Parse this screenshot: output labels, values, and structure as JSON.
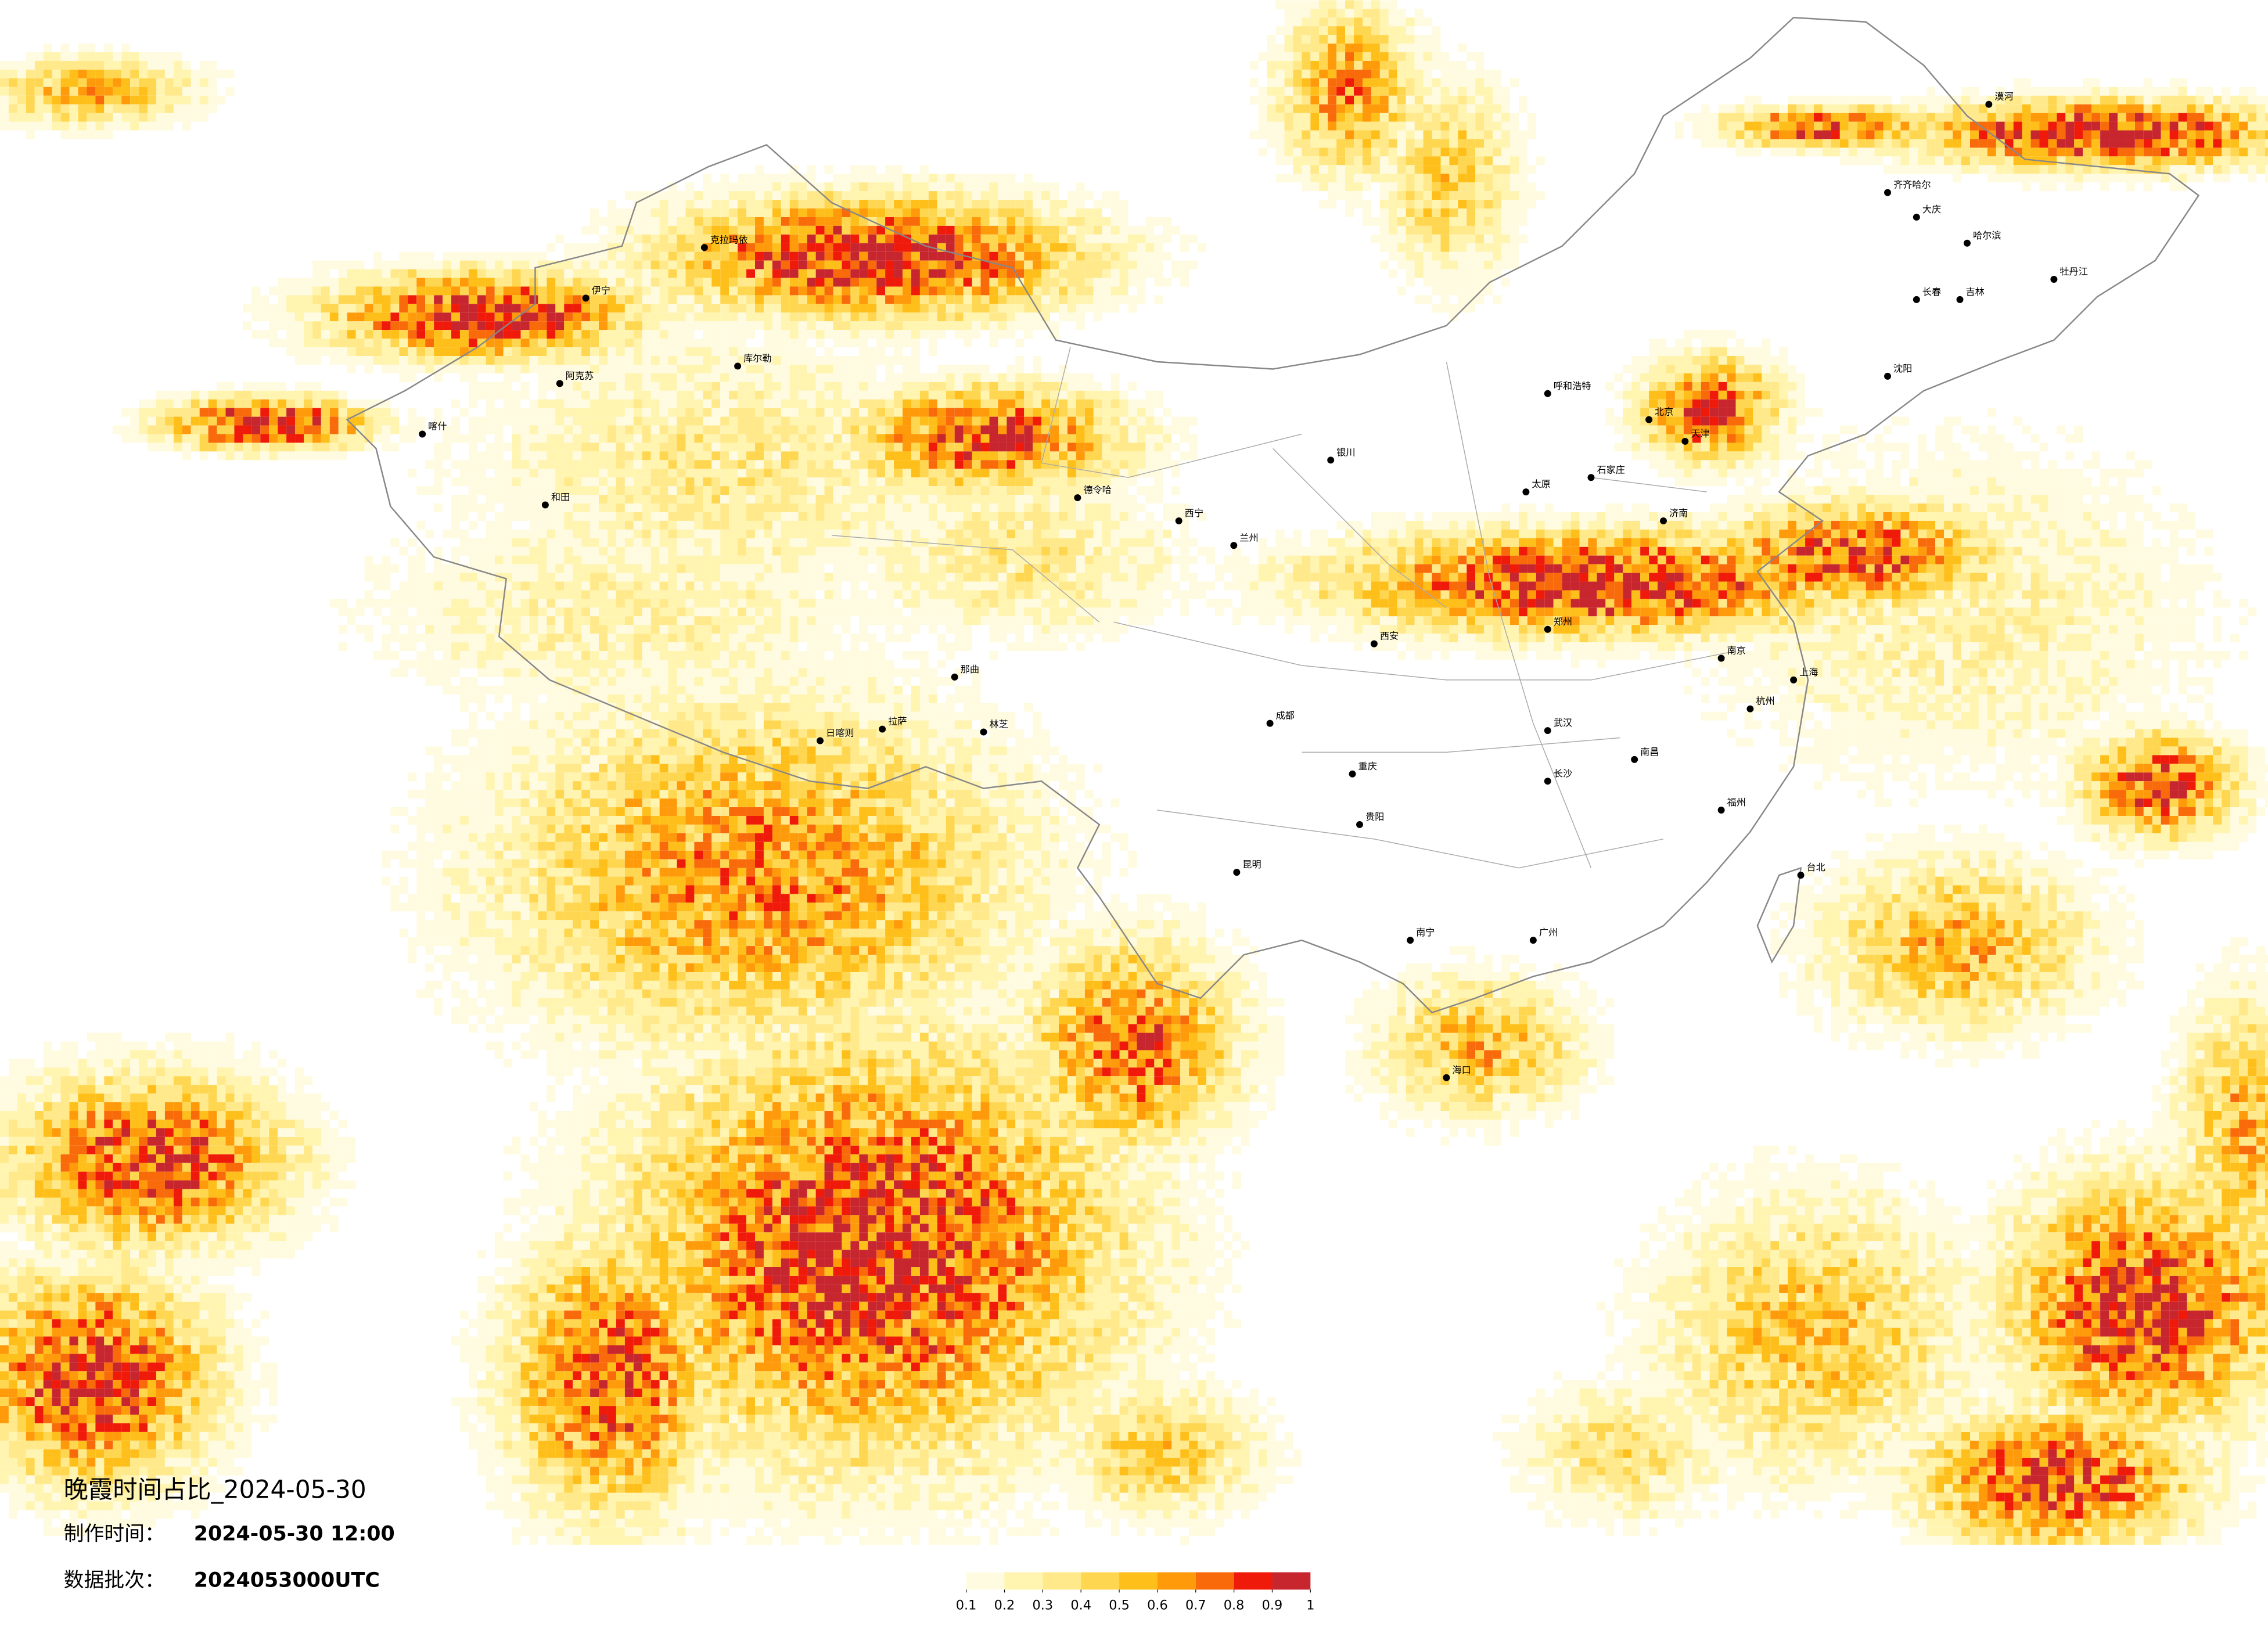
{
  "title": "晚霞时间占比_2024-05-30",
  "made_label": "制作时间：",
  "made_value": "2024-05-30 12:00",
  "batch_label": "数据批次：",
  "batch_value": "2024053000UTC",
  "legend": {
    "ticks": [
      0.1,
      0.2,
      0.3,
      0.4,
      0.5,
      0.6,
      0.7,
      0.8,
      0.9,
      1
    ],
    "colors": [
      "#fffbe0",
      "#fff4b0",
      "#ffe98a",
      "#ffd650",
      "#ffbf1a",
      "#ff9a0a",
      "#f86a0a",
      "#f01a0a",
      "#c8262e"
    ]
  },
  "cities": [
    "克拉玛依",
    "伊宁",
    "阿克苏",
    "喀什",
    "和田",
    "库尔勒",
    "德令哈",
    "拉萨",
    "日喀则",
    "林芝",
    "那曲",
    "哈尔滨",
    "长春",
    "沈阳",
    "北京",
    "天津",
    "济南",
    "西安",
    "成都",
    "重庆",
    "昆明",
    "贵阳",
    "南宁",
    "广州",
    "福州",
    "南京",
    "上海",
    "杭州",
    "武汉",
    "长沙",
    "南昌",
    "郑州",
    "太原",
    "石家庄",
    "呼和浩特",
    "银川",
    "兰州",
    "西宁",
    "台北",
    "海口",
    "漠河",
    "齐齐哈尔",
    "大庆",
    "牡丹江",
    "吉林"
  ]
}
